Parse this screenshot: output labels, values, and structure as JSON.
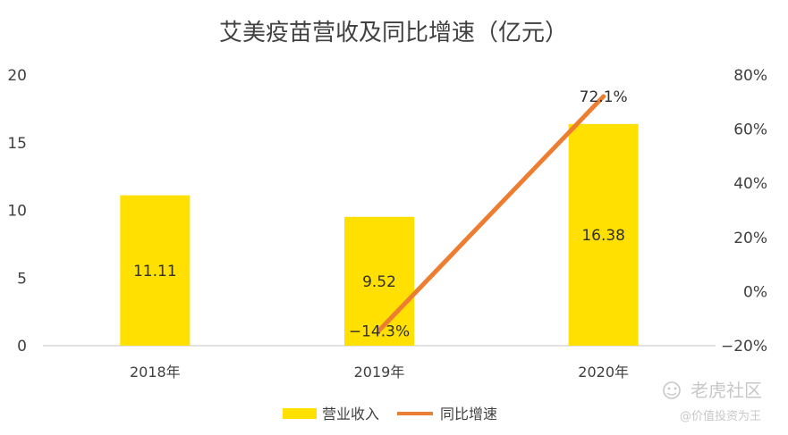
{
  "chart_data": {
    "type": "bar",
    "title": "艾美疫苗营收及同比增速（亿元）",
    "categories": [
      "2018年",
      "2019年",
      "2020年"
    ],
    "series": [
      {
        "name": "营业收入",
        "type": "bar",
        "axis": "left",
        "values": [
          11.11,
          9.52,
          16.38
        ],
        "labels": [
          "11.11",
          "9.52",
          "16.38"
        ]
      },
      {
        "name": "同比增速",
        "type": "line",
        "axis": "right",
        "values": [
          null,
          -14.3,
          72.1
        ],
        "labels": [
          "",
          "−14.3%",
          "72.1%"
        ]
      }
    ],
    "y_left": {
      "range": [
        0,
        20
      ],
      "ticks": [
        "0",
        "5",
        "10",
        "15",
        "20"
      ]
    },
    "y_right": {
      "range": [
        -20,
        80
      ],
      "ticks": [
        "−20%",
        "0%",
        "20%",
        "40%",
        "60%",
        "80%"
      ]
    },
    "grid": false,
    "legend": "bottom",
    "colors": {
      "bar": "#FFE000",
      "line": "#ED7D31",
      "text": "#404040",
      "axis": "#D9D9D9"
    }
  },
  "watermark": {
    "brand": "老虎社区",
    "handle": "@价值投资为王"
  }
}
